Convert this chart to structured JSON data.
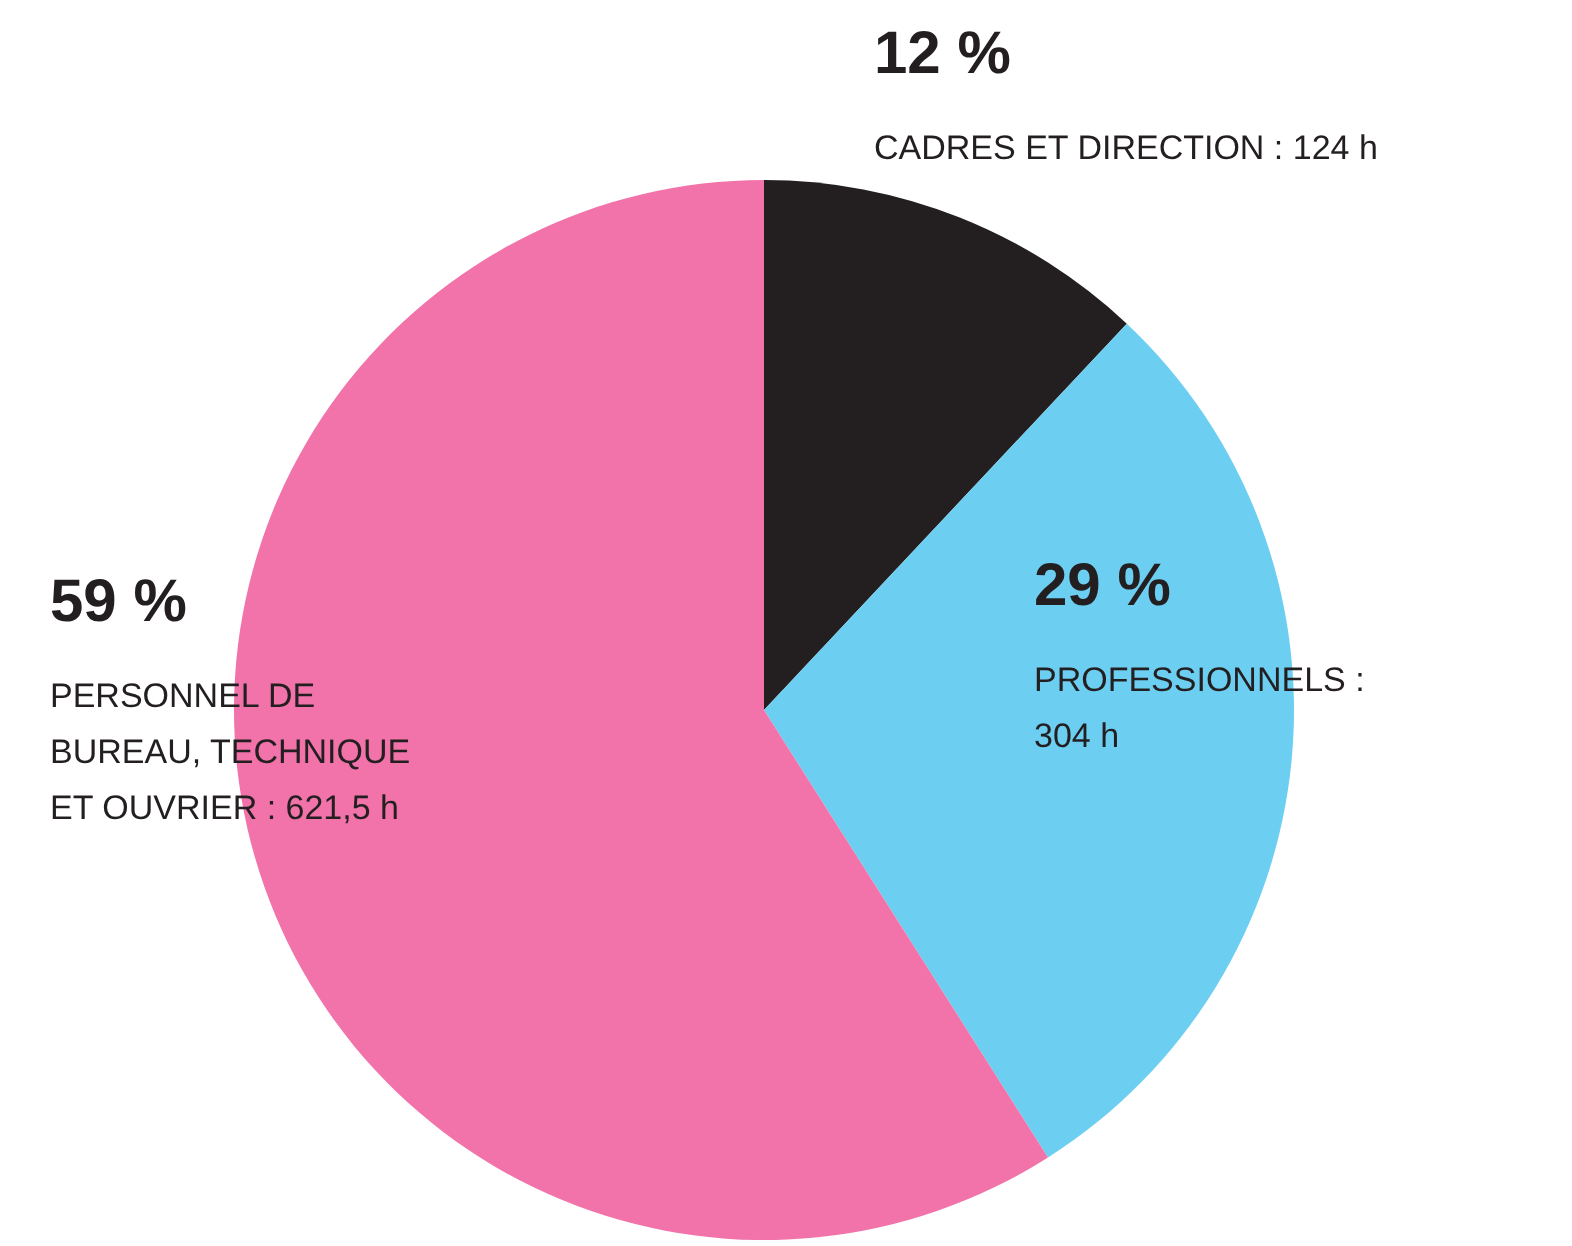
{
  "chart_data": {
    "type": "pie",
    "categories": [
      "CADRES ET DIRECTION : 124 h",
      "PROFESSIONNELS : 304 h",
      "PERSONNEL DE BUREAU, TECHNIQUE ET OUVRIER : 621,5 h"
    ],
    "values": [
      12,
      29,
      59
    ],
    "colors": [
      "#231f20",
      "#6ccff2",
      "#f173aa"
    ],
    "value_labels": [
      "12 %",
      "29 %",
      "59 %"
    ],
    "legend": false
  }
}
